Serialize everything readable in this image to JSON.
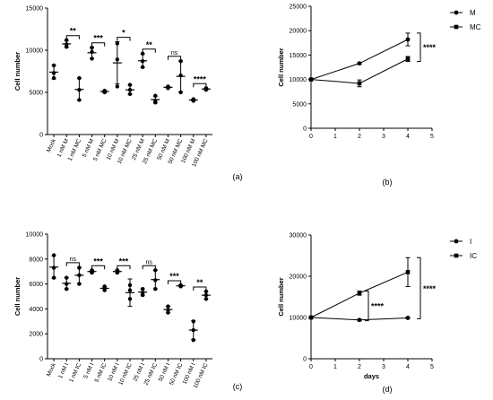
{
  "chart_data": [
    {
      "id": "a",
      "type": "scatter",
      "panel_label": "(a)",
      "ylabel": "Cell number",
      "xlabel": "",
      "ylim": [
        0,
        15000
      ],
      "yticks": [
        0,
        5000,
        10000,
        15000
      ],
      "categories": [
        "Mock",
        "1 nM M",
        "1 nM MC",
        "5 nM M",
        "5 nM MC",
        "10 nM M",
        "10 nM MC",
        "25 nM M",
        "25 nM MC",
        "50 nM M",
        "50 nM MC",
        "100 nM M",
        "100 nM MC"
      ],
      "points": [
        [
          6700,
          7300,
          8200
        ],
        [
          10400,
          10700,
          11200
        ],
        [
          4100,
          5300,
          6700
        ],
        [
          9000,
          9800,
          10300
        ],
        [
          5000,
          5100,
          5200
        ],
        [
          5700,
          8900,
          10800
        ],
        [
          4800,
          5300,
          5900
        ],
        [
          8000,
          8700,
          9600
        ],
        [
          3800,
          4000,
          4600
        ],
        [
          5500,
          5600,
          5700
        ],
        [
          5000,
          7000,
          8700
        ],
        [
          4000,
          4100,
          4200
        ],
        [
          5300,
          5400,
          5500
        ]
      ],
      "means": [
        7400,
        10750,
        5350,
        9700,
        5100,
        8500,
        5300,
        8750,
        4150,
        5600,
        6900,
        4100,
        5400
      ],
      "sds": [
        800,
        400,
        1300,
        650,
        100,
        2500,
        550,
        800,
        400,
        100,
        1850,
        100,
        100
      ],
      "significance": [
        {
          "pair": [
            1,
            2
          ],
          "label": "**"
        },
        {
          "pair": [
            3,
            4
          ],
          "label": "***"
        },
        {
          "pair": [
            5,
            6
          ],
          "label": "*"
        },
        {
          "pair": [
            7,
            8
          ],
          "label": "**"
        },
        {
          "pair": [
            9,
            10
          ],
          "label": "ns"
        },
        {
          "pair": [
            11,
            12
          ],
          "label": "****"
        }
      ],
      "grid": false
    },
    {
      "id": "b",
      "type": "line",
      "panel_label": "(b)",
      "ylabel": "Cell number",
      "xlabel": "",
      "ylim": [
        0,
        25000
      ],
      "yticks": [
        0,
        5000,
        10000,
        15000,
        20000,
        25000
      ],
      "xlim": [
        0,
        5
      ],
      "xticks": [
        0,
        1,
        2,
        3,
        4,
        5
      ],
      "series": [
        {
          "name": "M",
          "marker": "circle",
          "x": [
            0,
            2,
            4
          ],
          "y": [
            10000,
            13300,
            18200
          ],
          "err": [
            0,
            200,
            1300
          ]
        },
        {
          "name": "MC",
          "marker": "square",
          "x": [
            0,
            2,
            4
          ],
          "y": [
            10000,
            9200,
            14200
          ],
          "err": [
            0,
            700,
            500
          ]
        }
      ],
      "significance": [
        {
          "between": [
            "M",
            "MC"
          ],
          "at_x": 4,
          "label": "****"
        }
      ],
      "legend": "top-right",
      "grid": false
    },
    {
      "id": "c",
      "type": "scatter",
      "panel_label": "(c)",
      "ylabel": "Cell number",
      "xlabel": "",
      "ylim": [
        0,
        10000
      ],
      "yticks": [
        0,
        2000,
        4000,
        6000,
        8000,
        10000
      ],
      "categories": [
        "Mock",
        "1 nM I",
        "1 nM IC",
        "5 nM I",
        "5 nM IC",
        "10 nM I",
        "10 nM IC",
        "25 nM I",
        "25 nM IC",
        "50 nM I",
        "50 nM IC",
        "100 nM I",
        "100 nM IC"
      ],
      "points": [
        [
          6500,
          7300,
          8300
        ],
        [
          5600,
          6000,
          6500
        ],
        [
          6000,
          6700,
          7300
        ],
        [
          6900,
          7000,
          7100
        ],
        [
          5500,
          5700,
          5800
        ],
        [
          6900,
          7000,
          7100
        ],
        [
          4800,
          5500,
          5900
        ],
        [
          5100,
          5300,
          5600
        ],
        [
          5600,
          6300,
          7100
        ],
        [
          3700,
          3900,
          4200
        ],
        [
          5800,
          5850,
          5900
        ],
        [
          1500,
          2300,
          3000
        ],
        [
          4800,
          5100,
          5400
        ]
      ],
      "means": [
        7350,
        6050,
        6700,
        7000,
        5650,
        7000,
        5300,
        5350,
        6350,
        3950,
        5850,
        2300,
        5100
      ],
      "sds": [
        900,
        450,
        650,
        100,
        150,
        100,
        1100,
        250,
        750,
        250,
        50,
        750,
        300
      ],
      "significance": [
        {
          "pair": [
            1,
            2
          ],
          "label": "ns"
        },
        {
          "pair": [
            3,
            4
          ],
          "label": "***"
        },
        {
          "pair": [
            5,
            6
          ],
          "label": "***"
        },
        {
          "pair": [
            7,
            8
          ],
          "label": "ns"
        },
        {
          "pair": [
            9,
            10
          ],
          "label": "***"
        },
        {
          "pair": [
            11,
            12
          ],
          "label": "**"
        }
      ],
      "grid": false
    },
    {
      "id": "d",
      "type": "line",
      "panel_label": "(d)",
      "ylabel": "Cell number",
      "xlabel": "days",
      "ylim": [
        0,
        30000
      ],
      "yticks": [
        0,
        10000,
        20000,
        30000
      ],
      "xlim": [
        0,
        5
      ],
      "xticks": [
        0,
        1,
        2,
        3,
        4,
        5
      ],
      "series": [
        {
          "name": "I",
          "marker": "circle",
          "x": [
            0,
            2,
            4
          ],
          "y": [
            10000,
            9400,
            9900
          ],
          "err": [
            0,
            200,
            200
          ]
        },
        {
          "name": "IC",
          "marker": "square",
          "x": [
            0,
            2,
            4
          ],
          "y": [
            10000,
            15900,
            21000
          ],
          "err": [
            0,
            500,
            3500
          ]
        }
      ],
      "significance": [
        {
          "between": [
            "I",
            "IC"
          ],
          "at_x": 2,
          "label": "****"
        },
        {
          "between": [
            "I",
            "IC"
          ],
          "at_x": 4,
          "label": "****"
        }
      ],
      "legend": "top-right",
      "grid": false
    }
  ]
}
